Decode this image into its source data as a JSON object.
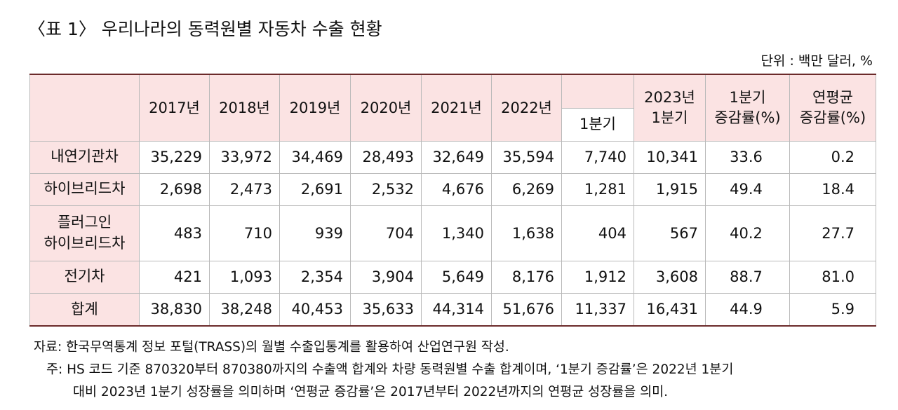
{
  "title": "〈표 1〉 우리나라의 동력원별 자동차 수출 현황",
  "unit": "단위 : 백만 달러, %",
  "table": {
    "header": {
      "years": [
        "2017년",
        "2018년",
        "2019년",
        "2020년",
        "2021년",
        "2022년"
      ],
      "q1": "1분기",
      "q2023": [
        "2023년",
        "1분기"
      ],
      "q_growth": [
        "1분기",
        "증감률(%)"
      ],
      "annual_growth": [
        "연평균",
        "증감률(%)"
      ]
    },
    "rows": [
      {
        "label": [
          "내연기관차"
        ],
        "values": [
          "35,229",
          "33,972",
          "34,469",
          "28,493",
          "32,649",
          "35,594",
          "7,740",
          "10,341",
          "33.6",
          "0.2"
        ]
      },
      {
        "label": [
          "하이브리드차"
        ],
        "values": [
          "2,698",
          "2,473",
          "2,691",
          "2,532",
          "4,676",
          "6,269",
          "1,281",
          "1,915",
          "49.4",
          "18.4"
        ]
      },
      {
        "label": [
          "플러그인",
          "하이브리드차"
        ],
        "values": [
          "483",
          "710",
          "939",
          "704",
          "1,340",
          "1,638",
          "404",
          "567",
          "40.2",
          "27.7"
        ]
      },
      {
        "label": [
          "전기차"
        ],
        "values": [
          "421",
          "1,093",
          "2,354",
          "3,904",
          "5,649",
          "8,176",
          "1,912",
          "3,608",
          "88.7",
          "81.0"
        ]
      },
      {
        "label": [
          "합계"
        ],
        "values": [
          "38,830",
          "38,248",
          "40,453",
          "35,633",
          "44,314",
          "51,676",
          "11,337",
          "16,431",
          "44.9",
          "5.9"
        ]
      }
    ]
  },
  "footnotes": {
    "source": "자료: 한국무역통계 정보 포털(TRASS)의 월별 수출입통계를 활용하여 산업연구원 작성.",
    "note": [
      "주: HS 코드 기준 870320부터 870380까지의 수출액 합계와 차량 동력원별 수출 합계이며, ‘1분기 증감률’은 2022년 1분기",
      "대비 2023년 1분기 성장률을 의미하며 ‘연평균 증감률’은 2017년부터 2022년까지의 연평균 성장률을 의미."
    ]
  }
}
